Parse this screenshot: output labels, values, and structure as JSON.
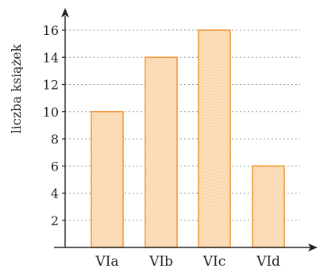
{
  "chart_data": {
    "type": "bar",
    "categories": [
      "VIa",
      "VIb",
      "VIc",
      "VId"
    ],
    "values": [
      10,
      14,
      16,
      6
    ],
    "title": "",
    "xlabel": "",
    "ylabel": "liczba książek",
    "ylim": [
      0,
      17
    ],
    "yticks": [
      2,
      4,
      6,
      8,
      10,
      12,
      14,
      16
    ],
    "grid": true,
    "bar_fill": "#fde6c5",
    "bar_stroke": "#f39a3a",
    "bar_dot": "#f3b680",
    "axis_color": "#222222",
    "grid_color": "#9a9a9a"
  }
}
